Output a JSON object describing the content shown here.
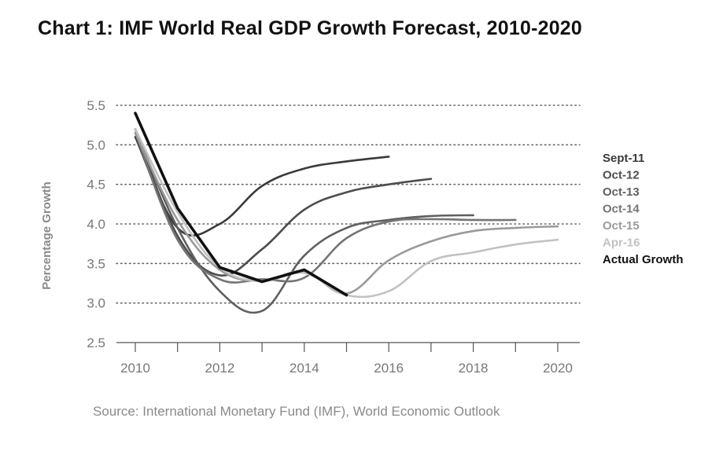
{
  "page": {
    "title": "Chart 1: IMF World Real GDP Growth Forecast, 2010-2020",
    "source": "Source: International Monetary Fund (IMF), World Economic Outlook"
  },
  "chart_data": {
    "type": "line",
    "title": "Chart 1: IMF World Real GDP Growth Forecast, 2010-2020",
    "xlabel": "",
    "ylabel": "Percentage Growth",
    "xlim": [
      2010,
      2020
    ],
    "ylim": [
      2.5,
      5.5
    ],
    "x_ticks": [
      "2010",
      "2012",
      "2014",
      "2016",
      "2018",
      "2020"
    ],
    "y_ticks": [
      "2.5",
      "3.0",
      "3.5",
      "4.0",
      "4.5",
      "5.0",
      "5.5"
    ],
    "grid": "horizontal dotted",
    "legend_position": "right",
    "series": [
      {
        "name": "Sept-11",
        "color": "#3a3a3a",
        "x": [
          2010,
          2011,
          2012,
          2013,
          2014,
          2015,
          2016
        ],
        "values": [
          5.1,
          3.95,
          4.0,
          4.48,
          4.7,
          4.79,
          4.85
        ]
      },
      {
        "name": "Oct-12",
        "color": "#4d4d4d",
        "x": [
          2010,
          2011,
          2012,
          2013,
          2014,
          2015,
          2016,
          2017
        ],
        "values": [
          5.2,
          3.85,
          3.35,
          3.68,
          4.18,
          4.4,
          4.5,
          4.57
        ]
      },
      {
        "name": "Oct-13",
        "color": "#5f5f5f",
        "x": [
          2010,
          2011,
          2012,
          2013,
          2014,
          2015,
          2016,
          2017,
          2018
        ],
        "values": [
          5.2,
          3.95,
          3.15,
          2.9,
          3.6,
          3.95,
          4.05,
          4.1,
          4.11
        ]
      },
      {
        "name": "Oct-14",
        "color": "#747474",
        "x": [
          2010,
          2011,
          2012,
          2013,
          2014,
          2015,
          2016,
          2017,
          2018,
          2019
        ],
        "values": [
          5.15,
          3.8,
          3.3,
          3.3,
          3.32,
          3.82,
          4.03,
          4.06,
          4.05,
          4.05
        ]
      },
      {
        "name": "Oct-15",
        "color": "#9a9a9a",
        "x": [
          2010,
          2011,
          2012,
          2013,
          2014,
          2015,
          2016,
          2017,
          2018,
          2019,
          2020
        ],
        "values": [
          5.15,
          4.05,
          3.42,
          3.28,
          3.4,
          3.12,
          3.54,
          3.78,
          3.91,
          3.95,
          3.97
        ]
      },
      {
        "name": "Apr-16",
        "color": "#c2c2c2",
        "x": [
          2010,
          2011,
          2012,
          2013,
          2014,
          2015,
          2016,
          2017,
          2018,
          2019,
          2020
        ],
        "values": [
          5.2,
          4.15,
          3.45,
          3.28,
          3.38,
          3.1,
          3.15,
          3.53,
          3.64,
          3.74,
          3.8
        ]
      },
      {
        "name": "Actual Growth",
        "color": "#111111",
        "x": [
          2010,
          2011,
          2012,
          2013,
          2014,
          2015
        ],
        "values": [
          5.4,
          4.2,
          3.45,
          3.27,
          3.42,
          3.1
        ]
      }
    ]
  }
}
